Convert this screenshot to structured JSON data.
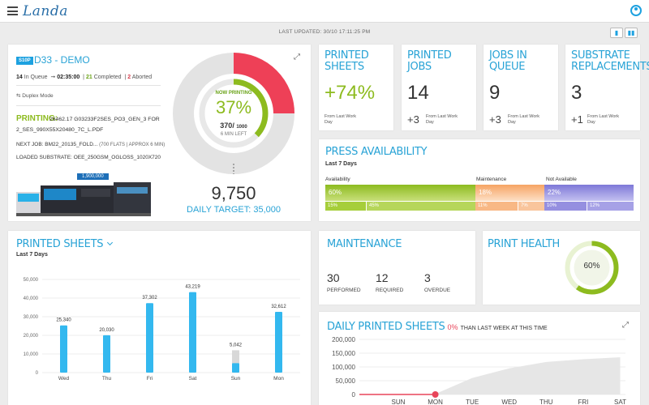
{
  "app": {
    "logo": "Landa"
  },
  "header": {
    "last_updated": "LAST UPDATED: 30/10 17:11:25 PM"
  },
  "press": {
    "tag": "S10P",
    "name": "D33 - DEMO",
    "in_queue_count": "14",
    "in_queue_label": "In Queue",
    "timer": "02:35:00",
    "completed_count": "21",
    "completed_label": "Completed",
    "aborted_count": "2",
    "aborted_label": "Aborted",
    "duplex": "Duplex Mode",
    "printing_label": "PRINTING:",
    "printing_file": "26462.17 G03233F2SES_PO3_GEN_3 FOR 2_SES_990X55X20480_7C_L.PDF",
    "next_job_label": "NEXT JOB:",
    "next_job": "BM22_20135_FOLD...",
    "next_job_detail": "(700 FLATS | APPROX 6 MIN)",
    "substrate_label": "LOADED SUBSTRATE:",
    "substrate": "OEE_250GSM_OGLOSS_1020X720",
    "press_counter": "1,900,000",
    "now_printing": "NOW PRINTING",
    "percent": "37%",
    "progress": 0.37,
    "sheets_done": "370/",
    "sheets_total": "1000",
    "time_left": "6 MIN LEFT",
    "daily_count": "9,750",
    "daily_target": "DAILY TARGET: 35,000"
  },
  "stats": [
    {
      "title": "PRINTED SHEETS",
      "value": "+74%",
      "delta": "",
      "note": "From Last Work Day"
    },
    {
      "title": "PRINTED JOBS",
      "value": "14",
      "delta": "+3",
      "note": "From Last Work Day"
    },
    {
      "title": "JOBS IN QUEUE",
      "value": "9",
      "delta": "+3",
      "note": "From Last Work Day"
    },
    {
      "title": "SUBSTRATE REPLACEMENTS",
      "value": "3",
      "delta": "+1",
      "note": "From Last Work Day"
    }
  ],
  "availability": {
    "title": "PRESS AVAILABILITY",
    "subtitle": "Last 7 Days",
    "availability_label": "Availability",
    "maintenance_label": "Maintenance",
    "not_available_label": "Not Available",
    "availability_pct": "60%",
    "maintenance_pct": "18%",
    "not_available_pct": "22%",
    "sub": [
      "15%",
      "45%",
      "11%",
      "7%",
      "10%",
      "12%"
    ],
    "colors": {
      "green": "#8dbb1f",
      "orange": "#f6a463",
      "purple": "#7e78d8"
    }
  },
  "printed_sheets": {
    "title": "PRINTED SHEETS",
    "subtitle": "Last 7 Days"
  },
  "chart_data": [
    {
      "type": "bar",
      "title": "PRINTED SHEETS",
      "categories": [
        "Wed",
        "Thu",
        "Fri",
        "Sat",
        "Sun",
        "Mon"
      ],
      "values": [
        25340,
        20030,
        37302,
        43219,
        5042,
        32612
      ],
      "labels": [
        "25,340",
        "20,030",
        "37,302",
        "43,219",
        "5,042",
        "32,612"
      ],
      "ylim": [
        0,
        50000
      ],
      "yticks": [
        "50,000",
        "40,000",
        "30,000",
        "20,000",
        "10,000",
        "0"
      ]
    },
    {
      "type": "area",
      "title": "DAILY PRINTED SHEETS",
      "categories": [
        "SUN",
        "MON",
        "TUE",
        "WED",
        "THU",
        "FRI",
        "SAT"
      ],
      "values": [
        0,
        2000,
        60000,
        95000,
        118000,
        128000,
        135000
      ],
      "current": 0,
      "ylim": [
        0,
        200000
      ],
      "yticks": [
        "200,000",
        "150,000",
        "100,000",
        "50,000",
        "0"
      ]
    }
  ],
  "maintenance": {
    "title": "MAINTENANCE",
    "performed": "30",
    "performed_label": "PERFORMED",
    "required": "12",
    "required_label": "REQUIRED",
    "overdue": "3",
    "overdue_label": "OVERDUE"
  },
  "health": {
    "title": "PRINT HEALTH",
    "value": "60%",
    "fraction": 0.6
  },
  "daily": {
    "title": "DAILY PRINTED SHEETS",
    "pct": "0%",
    "rest": "THAN LAST WEEK AT THIS TIME"
  }
}
